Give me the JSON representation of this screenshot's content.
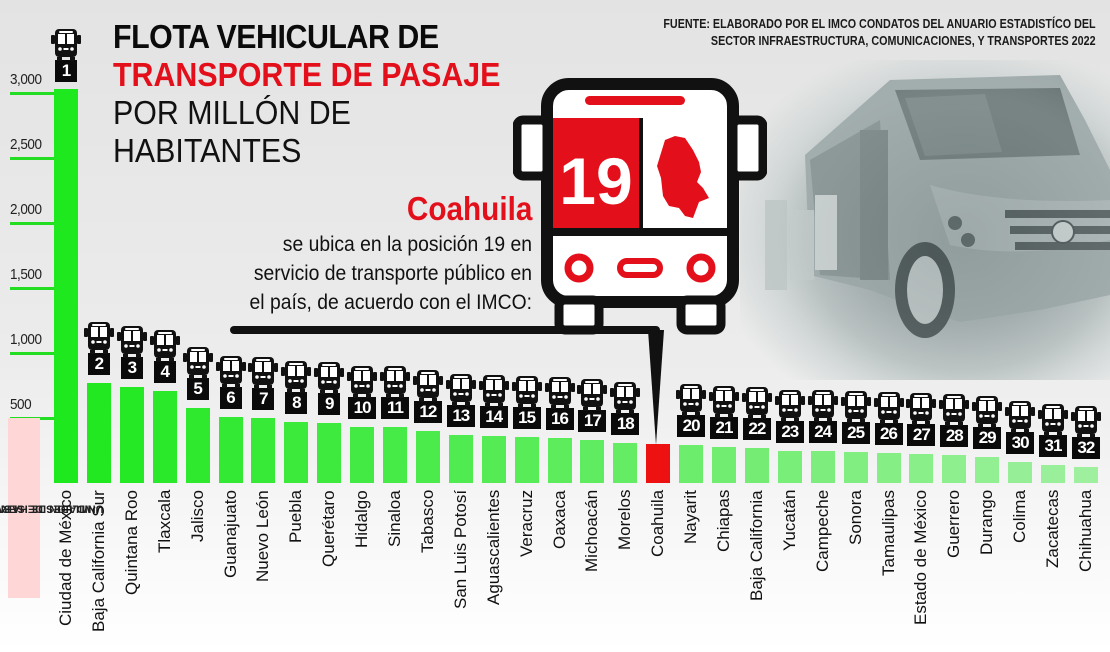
{
  "title": {
    "line1": "FLOTA VEHICULAR DE",
    "line2": "TRANSPORTE DE PASAJE",
    "line3": "POR MILLÓN DE",
    "line4": "HABITANTES"
  },
  "source": {
    "line1": "FUENTE: ELABORADO POR EL IMCO CONDATOS DEL ANUARIO ESTADISTÍCO DEL",
    "line2": "SECTOR INFRAESTRUCTURA, COMUNICACIONES, Y TRANSPORTES 2022"
  },
  "callout": {
    "state": "Coahuila",
    "line1": "se ubica en la posición 19 en",
    "line2": "servicio de transporte público en",
    "line3": "el país, de acuerdo con el IMCO:",
    "rank": "19",
    "highlight_color": "#e3101b"
  },
  "axis": {
    "title_line1": "UNIDADES DE SERVICIO POR",
    "title_line2": "MILLON DE HABITANTES",
    "ticks": [
      "3,000",
      "2,500",
      "2,000",
      "1,500",
      "1,000",
      "500"
    ]
  },
  "colors": {
    "bar_top": "#1ee81e",
    "bar_bottom": "#9ef09e",
    "highlight": "#ee1111",
    "grid": "#22dd22"
  },
  "chart_data": {
    "type": "bar",
    "title": "Flota vehicular de transporte de pasaje por millón de habitantes",
    "xlabel": "",
    "ylabel": "Unidades de servicio por millón de habitantes",
    "ylim": [
      0,
      3000
    ],
    "yticks": [
      500,
      1000,
      1500,
      2000,
      2500,
      3000
    ],
    "grid": false,
    "highlight": "Coahuila",
    "categories": [
      "Ciudad de México",
      "Baja California Sur",
      "Quintana Roo",
      "Tlaxcala",
      "Jalisco",
      "Guanajuato",
      "Nuevo León",
      "Puebla",
      "Querétaro",
      "Hidalgo",
      "Sinaloa",
      "Tabasco",
      "San Luis Potosí",
      "Aguascalientes",
      "Veracruz",
      "Oaxaca",
      "Michoacán",
      "Morelos",
      "Coahuila",
      "Nayarit",
      "Chiapas",
      "Baja California",
      "Yucatán",
      "Campeche",
      "Sonora",
      "Tamaulipas",
      "Estado de México",
      "Guerrero",
      "Durango",
      "Colima",
      "Zacatecas",
      "Chihuahua"
    ],
    "ranks": [
      "1",
      "2",
      "3",
      "4",
      "5",
      "6",
      "7",
      "8",
      "9",
      "10",
      "11",
      "12",
      "13",
      "14",
      "15",
      "16",
      "17",
      "18",
      "19",
      "20",
      "21",
      "22",
      "23",
      "24",
      "25",
      "26",
      "27",
      "28",
      "29",
      "30",
      "31",
      "32"
    ],
    "values": [
      3030,
      770,
      740,
      710,
      580,
      510,
      500,
      470,
      465,
      430,
      430,
      400,
      370,
      360,
      355,
      350,
      330,
      310,
      300,
      290,
      280,
      270,
      245,
      245,
      240,
      230,
      225,
      215,
      200,
      160,
      140,
      125
    ]
  }
}
